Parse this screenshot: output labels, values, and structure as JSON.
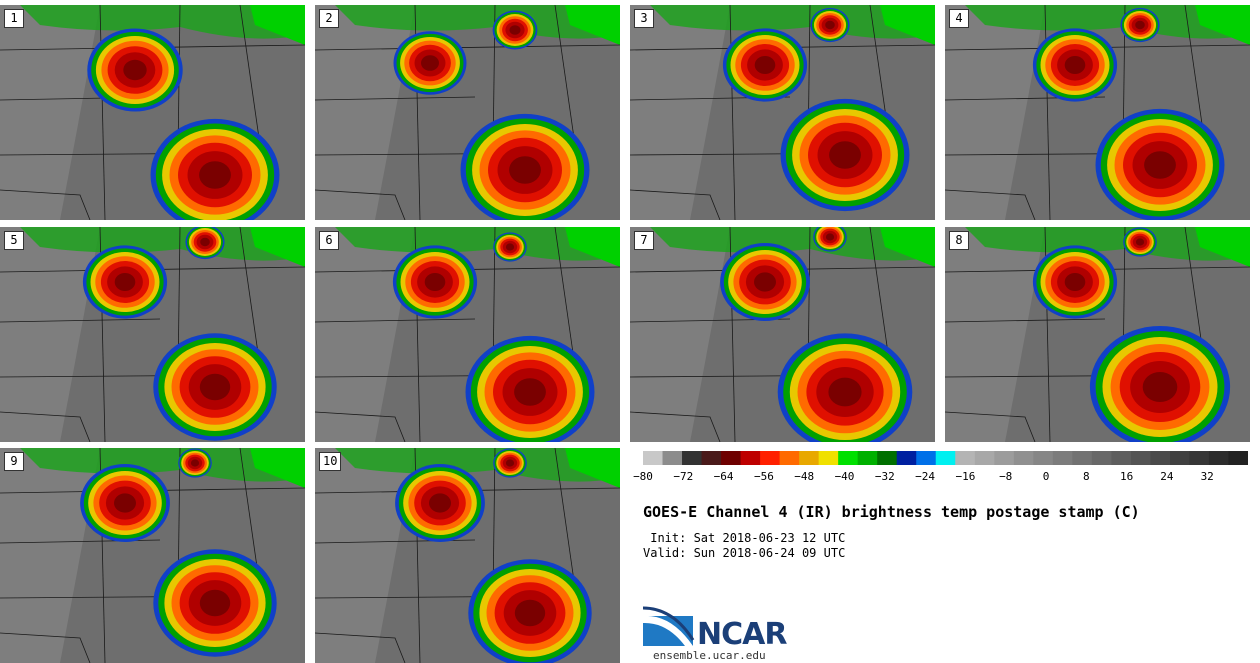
{
  "panels": [
    "1",
    "2",
    "3",
    "4",
    "5",
    "6",
    "7",
    "8",
    "9",
    "10"
  ],
  "colorbar": {
    "colors": [
      "#c8c8c8",
      "#8c8c8c",
      "#323232",
      "#4a1a1a",
      "#6e0000",
      "#be0000",
      "#ff2000",
      "#ff6a00",
      "#e8a800",
      "#f0e000",
      "#00e000",
      "#00b000",
      "#007000",
      "#0020a0",
      "#0070e8",
      "#00f0f0",
      "#b4b4b4",
      "#a8a8a8",
      "#9c9c9c",
      "#909090",
      "#868686",
      "#7c7c7c",
      "#727272",
      "#686868",
      "#5e5e5e",
      "#545454",
      "#4a4a4a",
      "#404040",
      "#363636",
      "#2c2c2c",
      "#222222"
    ],
    "ticks": [
      "−80",
      "−72",
      "−64",
      "−56",
      "−48",
      "−40",
      "−32",
      "−24",
      "−16",
      "−8",
      "0",
      "8",
      "16",
      "24",
      "32"
    ]
  },
  "title": "GOES-E Channel 4 (IR) brightness temp postage stamp (C)",
  "init_text": " Init: Sat 2018-06-23 12 UTC",
  "valid_text": "Valid: Sun 2018-06-24 09 UTC",
  "logo": {
    "name": "NCAR",
    "url": "ensemble.ucar.edu"
  }
}
